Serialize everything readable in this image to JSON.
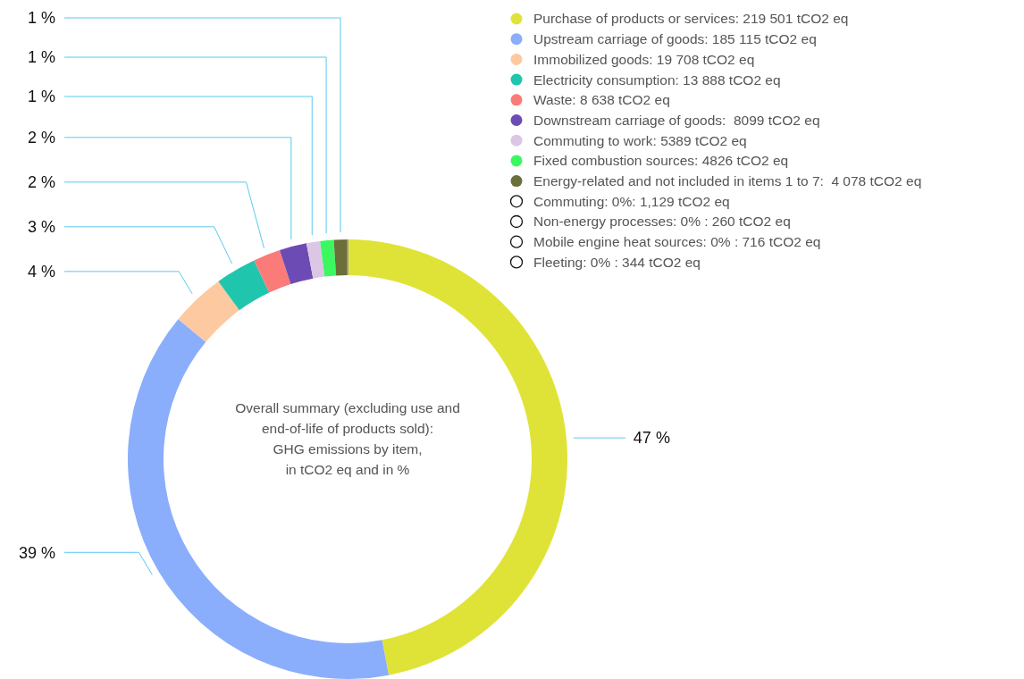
{
  "chart_data": {
    "type": "donut",
    "title": "Overall summary (excluding use and\nend-of-life of products sold):\nGHG emissions by item,\nin tCO2 eq and in %",
    "categories": [
      "Purchase of products or services: 219 501 tCO2 eq",
      "Upstream carriage of goods: 185 115 tCO2 eq",
      "Immobilized goods: 19 708 tCO2 eq",
      "Electricity consumption: 13 888 tCO2 eq",
      "Waste: 8 638 tCO2 eq",
      "Downstream carriage of goods:  8099 tCO2 eq",
      "Commuting to work: 5389 tCO2 eq",
      "Fixed combustion sources: 4826 tCO2 eq",
      "Energy-related and not included in items 1 to 7:  4 078 tCO2 eq",
      "Commuting: 0%: 1,129 tCO2 eq",
      "Non-energy processes: 0% : 260 tCO2 eq",
      "Mobile engine heat sources: 0% : 716 tCO2 eq",
      "Fleeting: 0% : 344 tCO2 eq"
    ],
    "values": [
      47,
      39,
      4,
      3,
      2,
      2,
      1,
      1,
      1,
      0,
      0,
      0,
      0
    ],
    "colors": [
      "#e0e337",
      "#8aaefc",
      "#fdc9a0",
      "#1fc6ad",
      "#fb7b78",
      "#6c4bb4",
      "#dcc6e6",
      "#3cf860",
      "#6b6f3a",
      "#ffffff",
      "#ffffff",
      "#ffffff",
      "#ffffff"
    ],
    "value_labels": [
      "47 %",
      "39 %",
      "4 %",
      "3 %",
      "2 %",
      "2 %",
      "1 %",
      "1 %",
      "1 %",
      null,
      null,
      null,
      null
    ],
    "legend": "top right"
  }
}
